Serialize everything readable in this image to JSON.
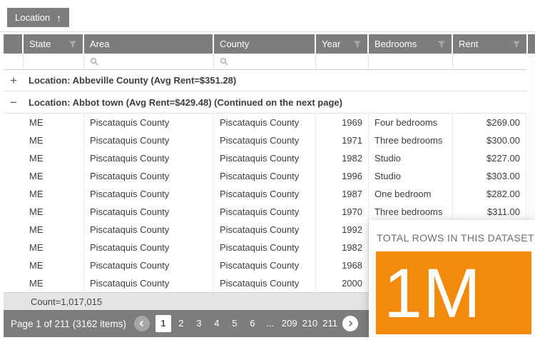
{
  "group_panel": {
    "chip_label": "Location",
    "sort_icon": "↑"
  },
  "grid": {
    "columns": {
      "state": "State",
      "area": "Area",
      "county": "County",
      "year": "Year",
      "bedrooms": "Bedrooms",
      "rent": "Rent"
    },
    "group_rows": [
      {
        "toggle": "+",
        "label": "Location: Abbeville County (Avg Rent=$351.28)"
      },
      {
        "toggle": "−",
        "label": "Location: Abbot town (Avg Rent=$429.48) (Continued on the next page)"
      }
    ],
    "rows": [
      {
        "state": "ME",
        "area": "Piscataquis County",
        "county": "Piscataquis County",
        "year": "1969",
        "bedrooms": "Four bedrooms",
        "rent": "$269.00"
      },
      {
        "state": "ME",
        "area": "Piscataquis County",
        "county": "Piscataquis County",
        "year": "1971",
        "bedrooms": "Three bedrooms",
        "rent": "$300.00"
      },
      {
        "state": "ME",
        "area": "Piscataquis County",
        "county": "Piscataquis County",
        "year": "1982",
        "bedrooms": "Studio",
        "rent": "$227.00"
      },
      {
        "state": "ME",
        "area": "Piscataquis County",
        "county": "Piscataquis County",
        "year": "1996",
        "bedrooms": "Studio",
        "rent": "$303.00"
      },
      {
        "state": "ME",
        "area": "Piscataquis County",
        "county": "Piscataquis County",
        "year": "1987",
        "bedrooms": "One bedroom",
        "rent": "$282.00"
      },
      {
        "state": "ME",
        "area": "Piscataquis County",
        "county": "Piscataquis County",
        "year": "1970",
        "bedrooms": "Three bedrooms",
        "rent": "$311.00"
      },
      {
        "state": "ME",
        "area": "Piscataquis County",
        "county": "Piscataquis County",
        "year": "1992",
        "bedrooms": "",
        "rent": ""
      },
      {
        "state": "ME",
        "area": "Piscataquis County",
        "county": "Piscataquis County",
        "year": "1982",
        "bedrooms": "",
        "rent": ""
      },
      {
        "state": "ME",
        "area": "Piscataquis County",
        "county": "Piscataquis County",
        "year": "1968",
        "bedrooms": "",
        "rent": ""
      },
      {
        "state": "ME",
        "area": "Piscataquis County",
        "county": "Piscataquis County",
        "year": "2000",
        "bedrooms": "",
        "rent": ""
      }
    ],
    "summary": "Count=1,017,015"
  },
  "pager": {
    "status": "Page 1 of 211 (3162 items)",
    "pages": [
      "1",
      "2",
      "3",
      "4",
      "5",
      "6",
      "...",
      "209",
      "210",
      "211"
    ],
    "current_page": "1"
  },
  "overlay": {
    "title": "TOTAL ROWS IN THIS DATASET",
    "value": "1M"
  },
  "colors": {
    "header_gray": "#7d7d7d",
    "accent_orange": "#F28A0D"
  }
}
